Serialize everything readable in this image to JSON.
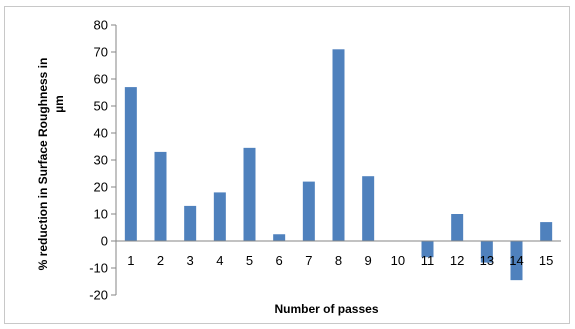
{
  "chart_data": {
    "type": "bar",
    "title": "",
    "xlabel": "Number of passes",
    "ylabel_lines": [
      "% reduction  in Surface Roughness in",
      "µm"
    ],
    "categories": [
      "1",
      "2",
      "3",
      "4",
      "5",
      "6",
      "7",
      "8",
      "9",
      "10",
      "11",
      "12",
      "13",
      "14",
      "15"
    ],
    "values": [
      57,
      33,
      13,
      18,
      34.5,
      2.5,
      22,
      71,
      24,
      0,
      -6,
      10,
      -8,
      -14.5,
      7
    ],
    "ylim": [
      -20,
      80
    ],
    "yticks": [
      -20,
      -10,
      0,
      10,
      20,
      30,
      40,
      50,
      60,
      70,
      80
    ],
    "grid": false,
    "legend": "none",
    "bar_color": "#4f81bd",
    "axis_color": "#868686"
  }
}
